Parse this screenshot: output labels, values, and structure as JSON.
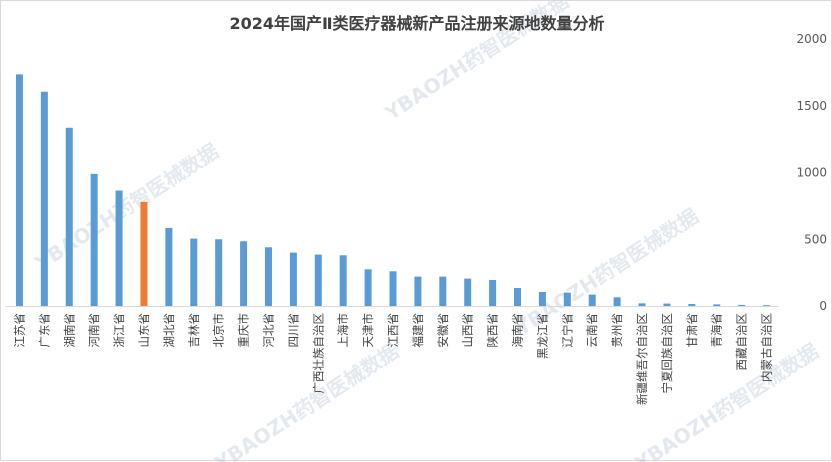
{
  "chart_data": {
    "type": "bar",
    "title": "2024年国产Ⅱ类医疗器械新产品注册来源地数量分析",
    "xlabel": "",
    "ylabel": "",
    "ylim": [
      0,
      2000
    ],
    "yticks": [
      "0",
      "500",
      "1000",
      "1500",
      "2000"
    ],
    "grid": false,
    "legend": "none",
    "categories": [
      "江苏省",
      "广东省",
      "湖南省",
      "河南省",
      "浙江省",
      "山东省",
      "湖北省",
      "吉林省",
      "北京市",
      "重庆市",
      "河北省",
      "四川省",
      "广西壮族自治区",
      "上海市",
      "天津市",
      "江西省",
      "福建省",
      "安徽省",
      "山西省",
      "陕西省",
      "海南省",
      "黑龙江省",
      "辽宁省",
      "云南省",
      "贵州省",
      "新疆维吾尔自治区",
      "宁夏回族自治区",
      "甘肃省",
      "青海省",
      "西藏自治区",
      "内蒙古自治区"
    ],
    "values": [
      1735,
      1605,
      1335,
      990,
      865,
      780,
      585,
      505,
      500,
      485,
      440,
      400,
      385,
      380,
      275,
      260,
      220,
      220,
      205,
      195,
      135,
      105,
      100,
      85,
      65,
      20,
      18,
      15,
      12,
      8,
      6
    ],
    "highlight_index": 5,
    "colors": {
      "bar": "#5b9bd5",
      "highlight": "#ed7d31"
    }
  },
  "watermark": "YBAOZH药智医械数据"
}
